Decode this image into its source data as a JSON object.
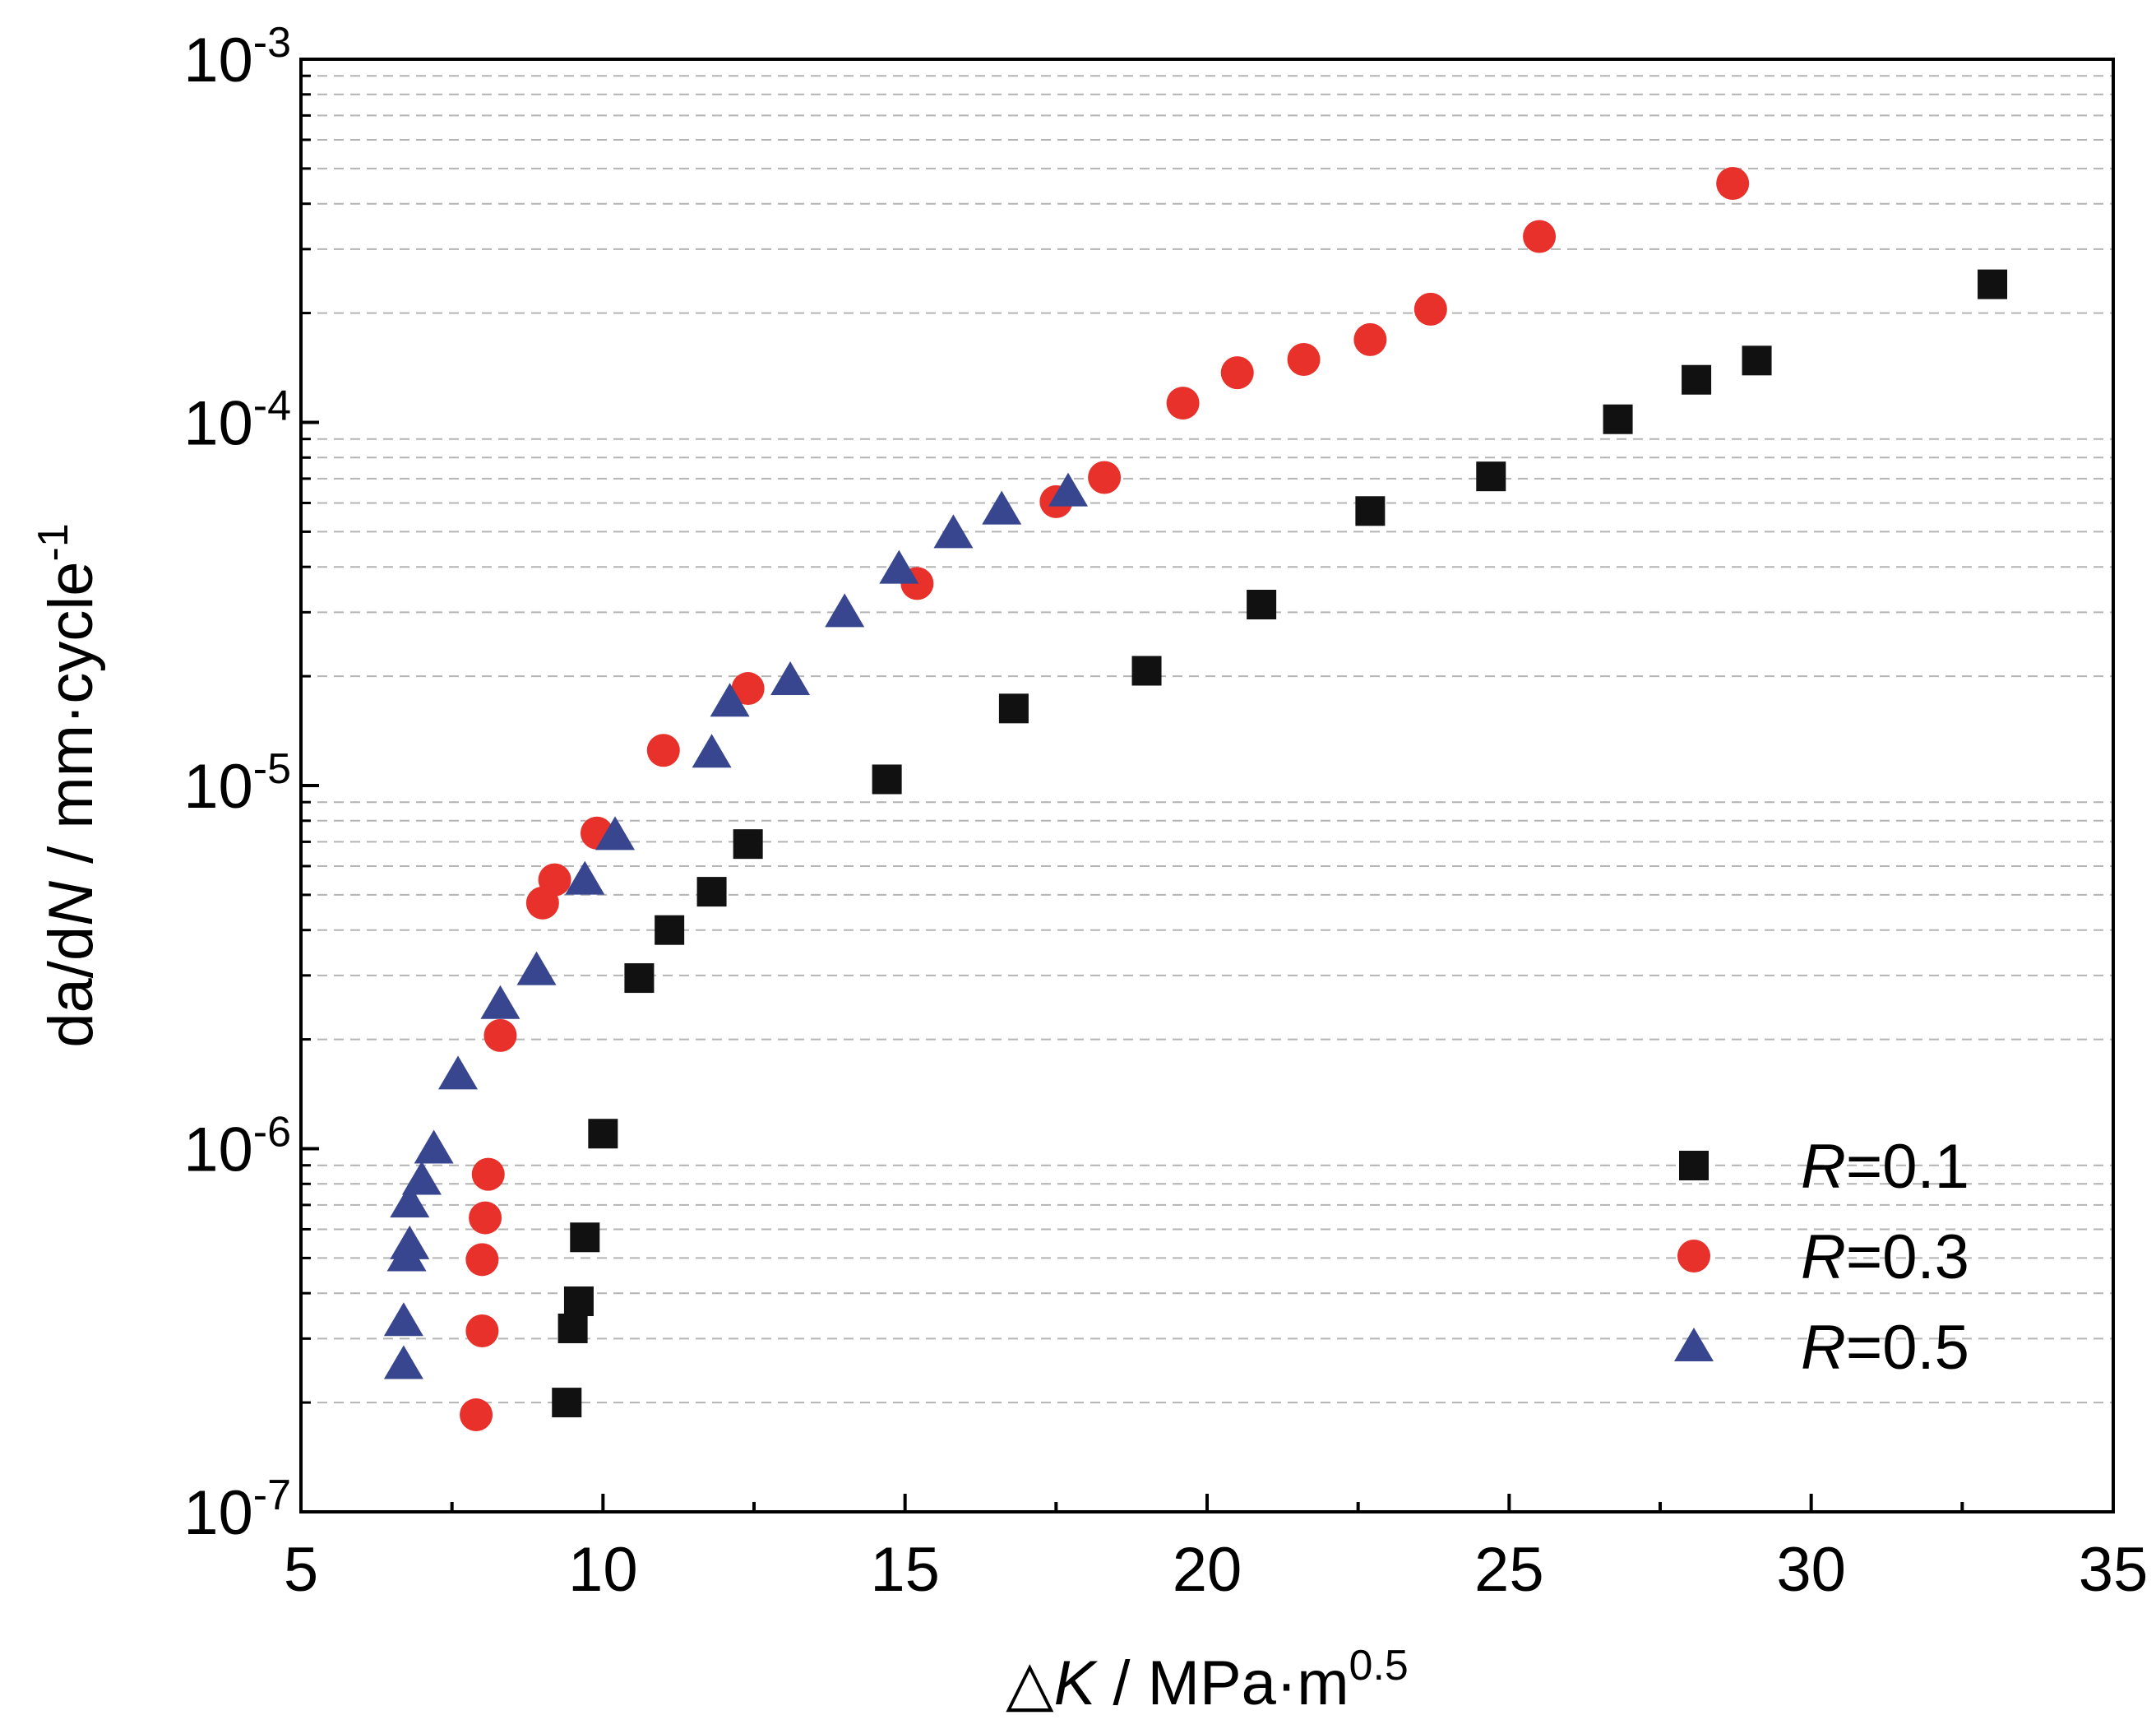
{
  "chart_data": {
    "type": "scatter",
    "title": "",
    "xlabel": {
      "prefix": "△",
      "italic": "K",
      "suffix": " / MPa·m",
      "superscript": "0.5"
    },
    "ylabel": {
      "prefix": "da/d",
      "italic": "N",
      "suffix": " / mm·cycle",
      "superscript": "-1"
    },
    "xlim": [
      5,
      35
    ],
    "ylim": [
      1e-07,
      0.001
    ],
    "yscale": "log",
    "grid": {
      "y_minor_dashed": true,
      "x": false
    },
    "x_ticks": [
      "5",
      "10",
      "15",
      "20",
      "25",
      "30",
      "35"
    ],
    "y_ticks": [
      {
        "base": "10",
        "exp": "-7"
      },
      {
        "base": "10",
        "exp": "-6"
      },
      {
        "base": "10",
        "exp": "-5"
      },
      {
        "base": "10",
        "exp": "-4"
      },
      {
        "base": "10",
        "exp": "-3"
      }
    ],
    "legend": {
      "position": "bottom-right"
    },
    "series": [
      {
        "name": "R=0.1",
        "label_italic": "R",
        "label_rest": "=0.1",
        "marker": "square",
        "color": "#111111",
        "points": [
          [
            9.4,
            2e-07
          ],
          [
            9.5,
            3.2e-07
          ],
          [
            9.6,
            3.8e-07
          ],
          [
            9.7,
            5.7e-07
          ],
          [
            10.0,
            1.1e-06
          ],
          [
            10.6,
            2.95e-06
          ],
          [
            11.1,
            4e-06
          ],
          [
            11.8,
            5.1e-06
          ],
          [
            12.4,
            6.9e-06
          ],
          [
            14.7,
            1.04e-05
          ],
          [
            16.8,
            1.63e-05
          ],
          [
            19.0,
            2.07e-05
          ],
          [
            20.9,
            3.15e-05
          ],
          [
            22.7,
            5.7e-05
          ],
          [
            24.7,
            7.1e-05
          ],
          [
            26.8,
            0.000102
          ],
          [
            28.1,
            0.000131
          ],
          [
            29.1,
            0.000148
          ],
          [
            33.0,
            0.00024
          ]
        ]
      },
      {
        "name": "R=0.3",
        "label_italic": "R",
        "label_rest": "=0.3",
        "marker": "circle",
        "color": "#e8312a",
        "points": [
          [
            7.9,
            1.85e-07
          ],
          [
            8.0,
            3.15e-07
          ],
          [
            8.0,
            4.95e-07
          ],
          [
            8.05,
            6.45e-07
          ],
          [
            8.1,
            8.5e-07
          ],
          [
            8.3,
            2.05e-06
          ],
          [
            9.0,
            4.75e-06
          ],
          [
            9.2,
            5.5e-06
          ],
          [
            9.9,
            7.4e-06
          ],
          [
            11.0,
            1.25e-05
          ],
          [
            12.4,
            1.85e-05
          ],
          [
            15.2,
            3.6e-05
          ],
          [
            17.5,
            6.05e-05
          ],
          [
            18.3,
            7.05e-05
          ],
          [
            19.6,
            0.000113
          ],
          [
            20.5,
            0.000137
          ],
          [
            21.6,
            0.000149
          ],
          [
            22.7,
            0.000169
          ],
          [
            23.7,
            0.000205
          ],
          [
            25.5,
            0.000325
          ],
          [
            28.7,
            0.000455
          ]
        ]
      },
      {
        "name": "R=0.5",
        "label_italic": "R",
        "label_rest": "=0.5",
        "marker": "triangle",
        "color": "#38458f",
        "points": [
          [
            6.7,
            2.55e-07
          ],
          [
            6.7,
            3.35e-07
          ],
          [
            6.75,
            5.05e-07
          ],
          [
            6.8,
            5.45e-07
          ],
          [
            6.8,
            7.1e-07
          ],
          [
            7.0,
            8.2e-07
          ],
          [
            7.2,
            1e-06
          ],
          [
            7.6,
            1.6e-06
          ],
          [
            8.3,
            2.5e-06
          ],
          [
            8.9,
            3.1e-06
          ],
          [
            9.7,
            5.5e-06
          ],
          [
            10.2,
            7.3e-06
          ],
          [
            11.8,
            1.23e-05
          ],
          [
            12.1,
            1.7e-05
          ],
          [
            13.1,
            1.95e-05
          ],
          [
            14.0,
            3e-05
          ],
          [
            14.9,
            3.95e-05
          ],
          [
            15.8,
            4.95e-05
          ],
          [
            16.6,
            5.75e-05
          ],
          [
            17.7,
            6.45e-05
          ]
        ]
      }
    ]
  }
}
